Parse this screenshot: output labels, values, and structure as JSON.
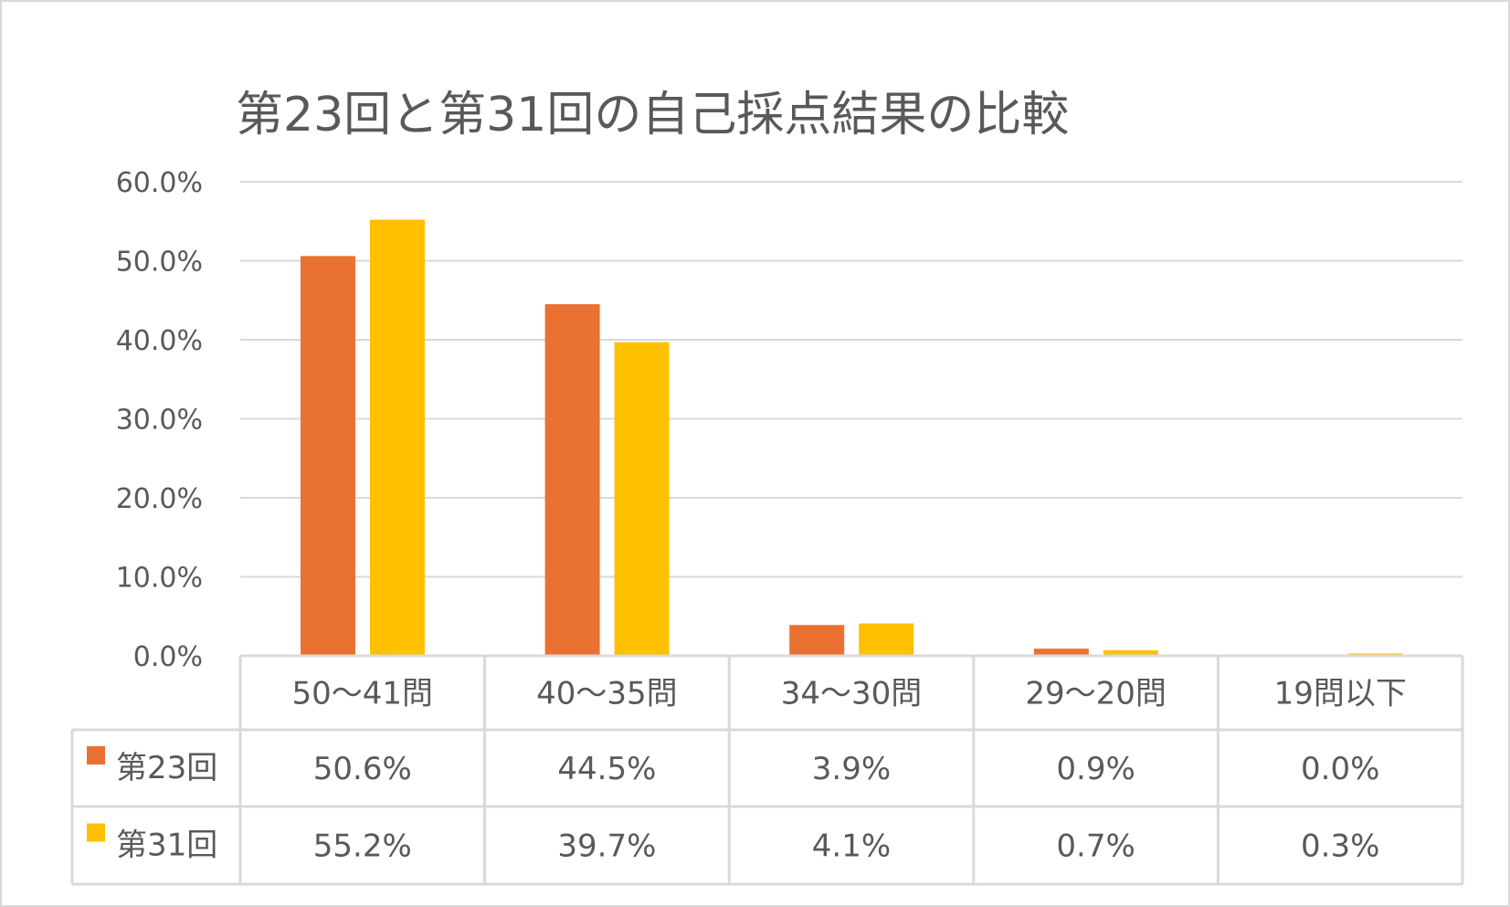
{
  "chart_data": {
    "type": "bar",
    "title": "第23回と第31回の自己採点結果の比較",
    "categories": [
      "50〜41問",
      "40〜35問",
      "34〜30問",
      "29〜20問",
      "19問以下"
    ],
    "series": [
      {
        "name": "第23回",
        "values": [
          50.6,
          44.5,
          3.9,
          0.9,
          0.0
        ],
        "labels": [
          "50.6%",
          "44.5%",
          "3.9%",
          "0.9%",
          "0.0%"
        ],
        "color": "#E97132"
      },
      {
        "name": "第31回",
        "values": [
          55.2,
          39.7,
          4.1,
          0.7,
          0.3
        ],
        "labels": [
          "55.2%",
          "39.7%",
          "4.1%",
          "0.7%",
          "0.3%"
        ],
        "color": "#FFC000"
      }
    ],
    "ylim": [
      0,
      60
    ],
    "yticks": [
      "0.0%",
      "10.0%",
      "20.0%",
      "30.0%",
      "40.0%",
      "50.0%",
      "60.0%"
    ],
    "grid": true,
    "legend": "data-table",
    "xlabel": "",
    "ylabel": ""
  }
}
